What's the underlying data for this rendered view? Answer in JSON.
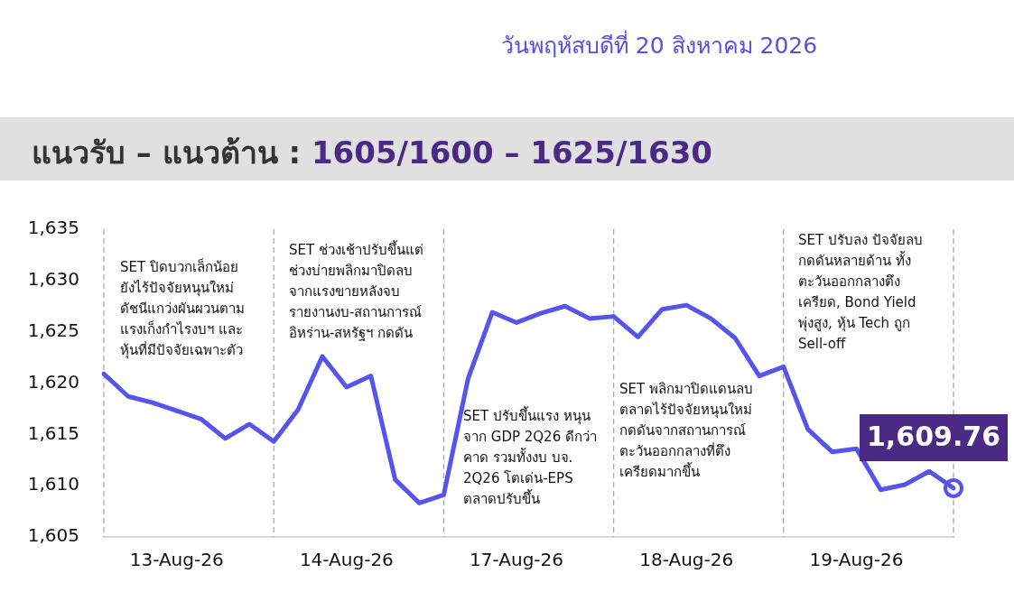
{
  "chart_data": {
    "type": "line",
    "title": "แนวรับ – แนวต้าน : 1605/1600 – 1625/1630",
    "subtitle": "วันพฤหัสบดีที่ 20 สิงหาคม 2026",
    "categories": [
      null,
      null,
      null,
      "13-Aug-26",
      null,
      null,
      null,
      null,
      null,
      null,
      "14-Aug-26",
      null,
      null,
      null,
      null,
      null,
      null,
      "17-Aug-26",
      null,
      null,
      null,
      null,
      null,
      null,
      "18-Aug-26",
      null,
      null,
      null,
      null,
      null,
      null,
      "19-Aug-26",
      null,
      null,
      null,
      null
    ],
    "series": [
      {
        "color": "#5555ee",
        "values": [
          1620.9,
          1618.7,
          1618.1,
          1617.3,
          1616.5,
          1614.6,
          1616.0,
          1614.3,
          1617.4,
          1622.6,
          1619.6,
          1620.7,
          1610.6,
          1608.3,
          1609.1,
          1620.4,
          1626.9,
          1625.9,
          1626.8,
          1627.5,
          1626.3,
          1626.5,
          1624.5,
          1627.2,
          1627.6,
          1626.3,
          1624.4,
          1620.7,
          1621.6,
          1615.5,
          1613.3,
          1613.6,
          1609.6,
          1610.1,
          1611.4,
          1609.76
        ],
        "value_labels": [
          null,
          null,
          null,
          null,
          null,
          null,
          null,
          null,
          null,
          null,
          null,
          null,
          null,
          null,
          null,
          null,
          null,
          null,
          null,
          null,
          null,
          null,
          null,
          null,
          null,
          null,
          null,
          null,
          null,
          null,
          null,
          null,
          null,
          null,
          null,
          "1,609.76"
        ]
      },
      {
        "type": "scatter",
        "color": "#5555ee",
        "marker": "circle",
        "values": [
          null,
          null,
          null,
          null,
          null,
          null,
          null,
          null,
          null,
          null,
          null,
          null,
          null,
          null,
          null,
          null,
          null,
          null,
          null,
          null,
          null,
          null,
          null,
          null,
          null,
          null,
          null,
          null,
          null,
          null,
          null,
          null,
          null,
          null,
          null,
          1609.76
        ]
      }
    ],
    "ylim": [
      1605,
      1635
    ],
    "yticks": [
      {
        "value": 1605,
        "label": "1,605"
      },
      {
        "value": 1610,
        "label": "1,610"
      },
      {
        "value": 1615,
        "label": "1,615"
      },
      {
        "value": 1620,
        "label": "1,620"
      },
      {
        "value": 1625,
        "label": "1,625"
      },
      {
        "value": 1630,
        "label": "1,630"
      },
      {
        "value": 1635,
        "label": "1,635"
      }
    ],
    "annotations": [
      "SET ปิดบวกเล็กน้อย\nยังไร้ปัจจัยหนุนใหม่\nดัชนีแกว่งผันผวนตาม\nแรงเก็งกำไรงบฯ และ\nหุ้นที่มีปัจจัยเฉพาะตัว",
      "SET ช่วงเช้าปรับขึ้นแต่\nช่วงบ่ายพลิกมาปิดลบ\nจากแรงขายหลังจบ\nรายงานงบ-สถานการณ์\nอิหร่าน-สหรัฐฯ กดดัน",
      "SET ปรับขึ้นแรง หนุน\nจาก GDP 2Q26 ดีกว่า\nคาด รวมทั้งงบ บจ.\n2Q26 โตเด่น-EPS\nตลาดปรับขึ้น",
      "SET พลิกมาปิดแดนลบ\nตลาดไร้ปัจจัยหนุนใหม่\nกดดันจากสถานการณ์\nตะวันออกกลางที่ตึง\nเครียดมากขึ้น",
      "SET ปรับลง ปัจจัยลบ\nกดดันหลายด้าน ทั้ง\nตะวันออกกลางตึง\nเครียด, Bond Yield\nพุ่งสูง, หุ้น Tech ถูก\nSell-off"
    ],
    "grid": "x",
    "legend": false
  }
}
